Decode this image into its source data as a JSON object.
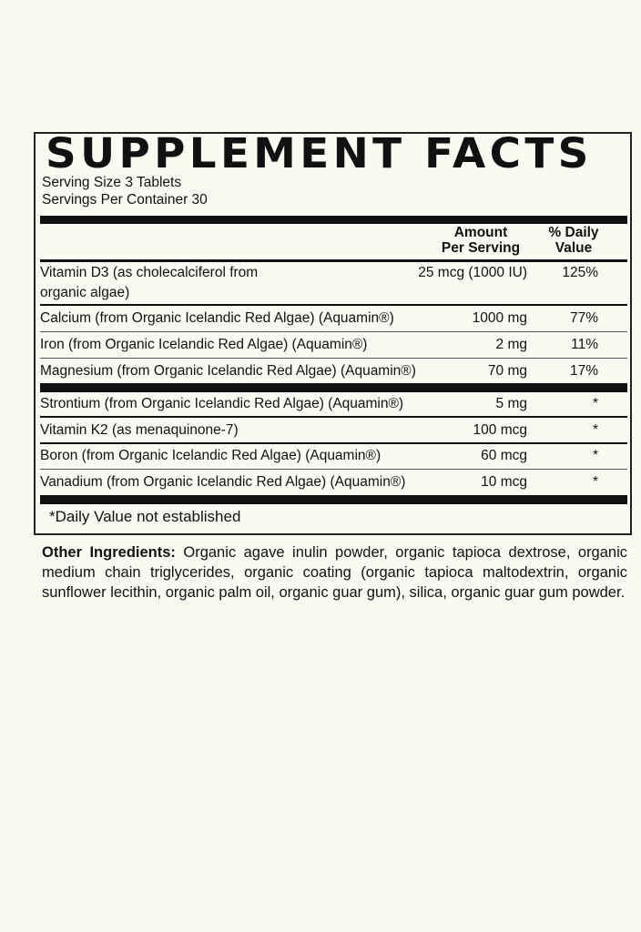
{
  "title": "SUPPLEMENT FACTS",
  "serving_size": "Serving Size 3 Tablets",
  "servings_per_container": "Servings Per Container 30",
  "columns": {
    "amount_1": "Amount",
    "amount_2": "Per Serving",
    "dv_1": "% Daily",
    "dv_2": "Value"
  },
  "rows": [
    {
      "name": "Vitamin D3 (as cholecalciferol from",
      "name2": "organic algae)",
      "amount": "25 mcg (1000 IU)",
      "dv": "125%"
    },
    {
      "name": "Calcium (from Organic Icelandic Red Algae) (Aquamin®)",
      "amount": "1000 mg",
      "dv": "77%"
    },
    {
      "name": "Iron (from Organic Icelandic Red Algae) (Aquamin®)",
      "amount": "2 mg",
      "dv": "11%"
    },
    {
      "name": "Magnesium (from Organic Icelandic Red Algae) (Aquamin®)",
      "amount": "70 mg",
      "dv": "17%"
    },
    {
      "name": "Strontium (from Organic Icelandic Red Algae) (Aquamin®)",
      "amount": "5 mg",
      "dv": "*"
    },
    {
      "name": "Vitamin K2 (as menaquinone-7)",
      "amount": "100 mcg",
      "dv": "*"
    },
    {
      "name": "Boron (from Organic Icelandic Red Algae) (Aquamin®)",
      "amount": "60 mcg",
      "dv": "*"
    },
    {
      "name": "Vanadium (from Organic Icelandic Red Algae) (Aquamin®)",
      "amount": "10 mcg",
      "dv": "*"
    }
  ],
  "footnote": "*Daily Value not established",
  "other_ingredients": {
    "label": "Other Ingredients:",
    "text": " Organic agave inulin powder, organic tapioca dextrose, organic medium chain triglycerides, organic coating (organic tapioca maltodextrin, organic sunflower lecithin, organic palm oil, organic guar gum), silica, organic guar gum powder."
  }
}
